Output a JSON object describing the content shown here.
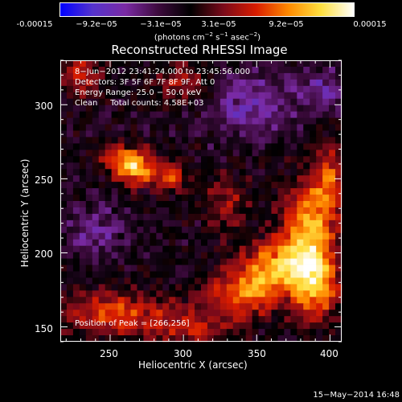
{
  "colorbar": {
    "ticks": [
      "-0.00015",
      "−9.2e−05",
      "−3.1e−05",
      "3.1e−05",
      "9.2e−05",
      "0.00015"
    ],
    "tick_values": [
      -0.00015,
      -9.2e-05,
      -3.1e-05,
      3.1e-05,
      9.2e-05,
      0.00015
    ],
    "unit_parts": [
      "(photons cm",
      "−2",
      " s",
      "−1",
      " asec",
      "−2",
      ")"
    ],
    "min": -0.00015,
    "max": 0.00015
  },
  "chart_data": {
    "type": "heatmap",
    "title": "Reconstructed RHESSI Image",
    "xlabel": "Heliocentric X (arcsec)",
    "ylabel": "Heliocentric Y (arcsec)",
    "xlim": [
      216,
      408
    ],
    "ylim": [
      140,
      330
    ],
    "xticks": [
      250,
      300,
      350,
      400
    ],
    "yticks": [
      150,
      200,
      250,
      300
    ],
    "colormap": [
      "#0000ff",
      "#5533cc",
      "#7a2aa3",
      "#3d0a3d",
      "#000000",
      "#7a0a1a",
      "#d81c00",
      "#ff8a00",
      "#ffe040",
      "#ffffff"
    ],
    "annotations": [
      "8−Jun−2012 23:41:24.000 to 23:45:56.000",
      "Detectors: 3F 5F 6F 7F 8F 9F, Att 0",
      "Energy Range: 25.0 − 50.0 keV",
      "Clean     Total counts: 4.58E+03",
      "Position of Peak = [266,256]"
    ],
    "peak": [
      266,
      256
    ],
    "sources": [
      {
        "x": 266,
        "y": 258,
        "amp": 1.0,
        "sx": 9,
        "sy": 8
      },
      {
        "x": 290,
        "y": 252,
        "amp": 0.6,
        "sx": 8,
        "sy": 7
      },
      {
        "x": 252,
        "y": 265,
        "amp": 0.4,
        "sx": 7,
        "sy": 6
      },
      {
        "x": 385,
        "y": 212,
        "amp": 0.85,
        "sx": 13,
        "sy": 25
      },
      {
        "x": 362,
        "y": 190,
        "amp": 0.7,
        "sx": 18,
        "sy": 12
      },
      {
        "x": 340,
        "y": 172,
        "amp": 0.6,
        "sx": 20,
        "sy": 10
      },
      {
        "x": 392,
        "y": 175,
        "amp": 0.6,
        "sx": 10,
        "sy": 15
      },
      {
        "x": 400,
        "y": 250,
        "amp": 0.5,
        "sx": 8,
        "sy": 18
      },
      {
        "x": 250,
        "y": 160,
        "amp": 0.55,
        "sx": 26,
        "sy": 10
      },
      {
        "x": 305,
        "y": 150,
        "amp": 0.4,
        "sx": 25,
        "sy": 8
      },
      {
        "x": 300,
        "y": 315,
        "amp": 0.4,
        "sx": 14,
        "sy": 10
      },
      {
        "x": 230,
        "y": 320,
        "amp": 0.45,
        "sx": 10,
        "sy": 10
      },
      {
        "x": 330,
        "y": 235,
        "amp": 0.35,
        "sx": 10,
        "sy": 14
      },
      {
        "x": 345,
        "y": 300,
        "amp": -0.4,
        "sx": 22,
        "sy": 16
      },
      {
        "x": 395,
        "y": 310,
        "amp": -0.35,
        "sx": 12,
        "sy": 10
      },
      {
        "x": 240,
        "y": 215,
        "amp": -0.3,
        "sx": 15,
        "sy": 12
      }
    ]
  },
  "footer": {
    "date": "15−May−2014 16:48"
  }
}
